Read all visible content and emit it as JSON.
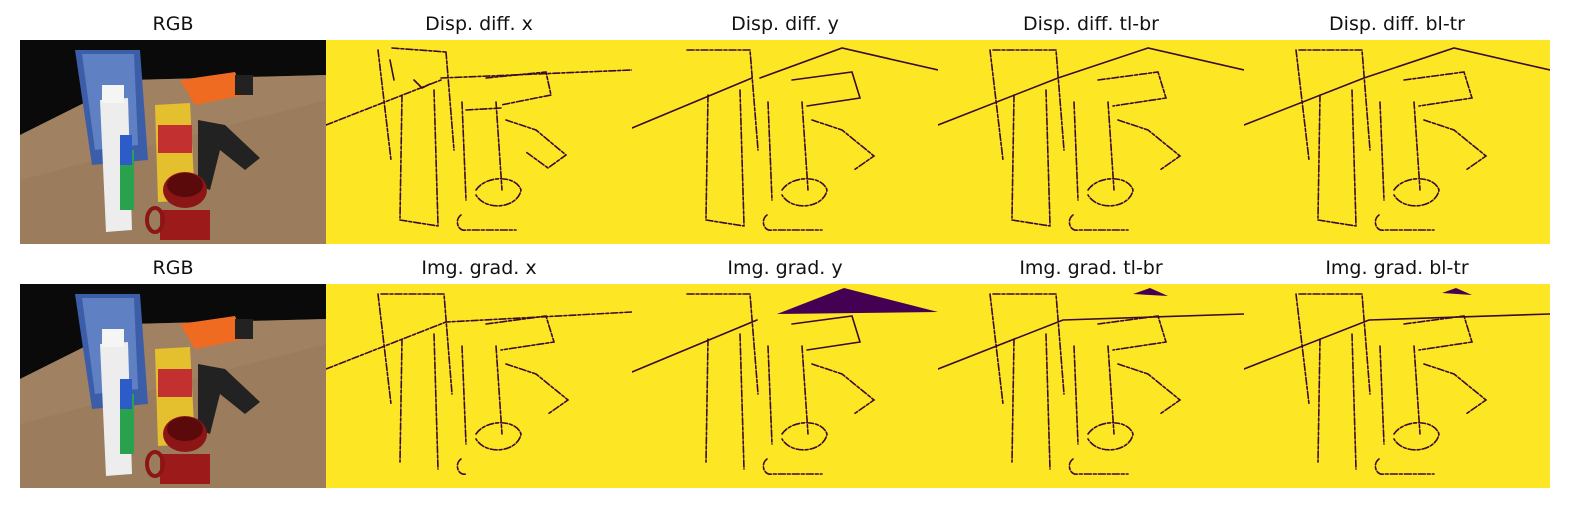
{
  "rows": [
    {
      "row": "disparity",
      "panels": [
        {
          "title": "RGB",
          "kind": "rgb"
        },
        {
          "title": "Disp. diff. x",
          "kind": "map",
          "wedge": "none"
        },
        {
          "title": "Disp. diff. y",
          "kind": "map",
          "wedge": "none"
        },
        {
          "title": "Disp. diff. tl-br",
          "kind": "map",
          "wedge": "none"
        },
        {
          "title": "Disp. diff. bl-tr",
          "kind": "map",
          "wedge": "none"
        }
      ]
    },
    {
      "row": "gradient",
      "panels": [
        {
          "title": "RGB",
          "kind": "rgb"
        },
        {
          "title": "Img. grad. x",
          "kind": "map",
          "wedge": "none"
        },
        {
          "title": "Img. grad. y",
          "kind": "map",
          "wedge": "large"
        },
        {
          "title": "Img. grad. tl-br",
          "kind": "map",
          "wedge": "small"
        },
        {
          "title": "Img. grad. bl-tr",
          "kind": "map",
          "wedge": "small"
        }
      ]
    }
  ],
  "colors": {
    "map_background": "#fde725",
    "map_edges": "#440154",
    "wedge": "#440154",
    "photo_background": "#0a0a0a",
    "table": "#9b7c5c"
  }
}
